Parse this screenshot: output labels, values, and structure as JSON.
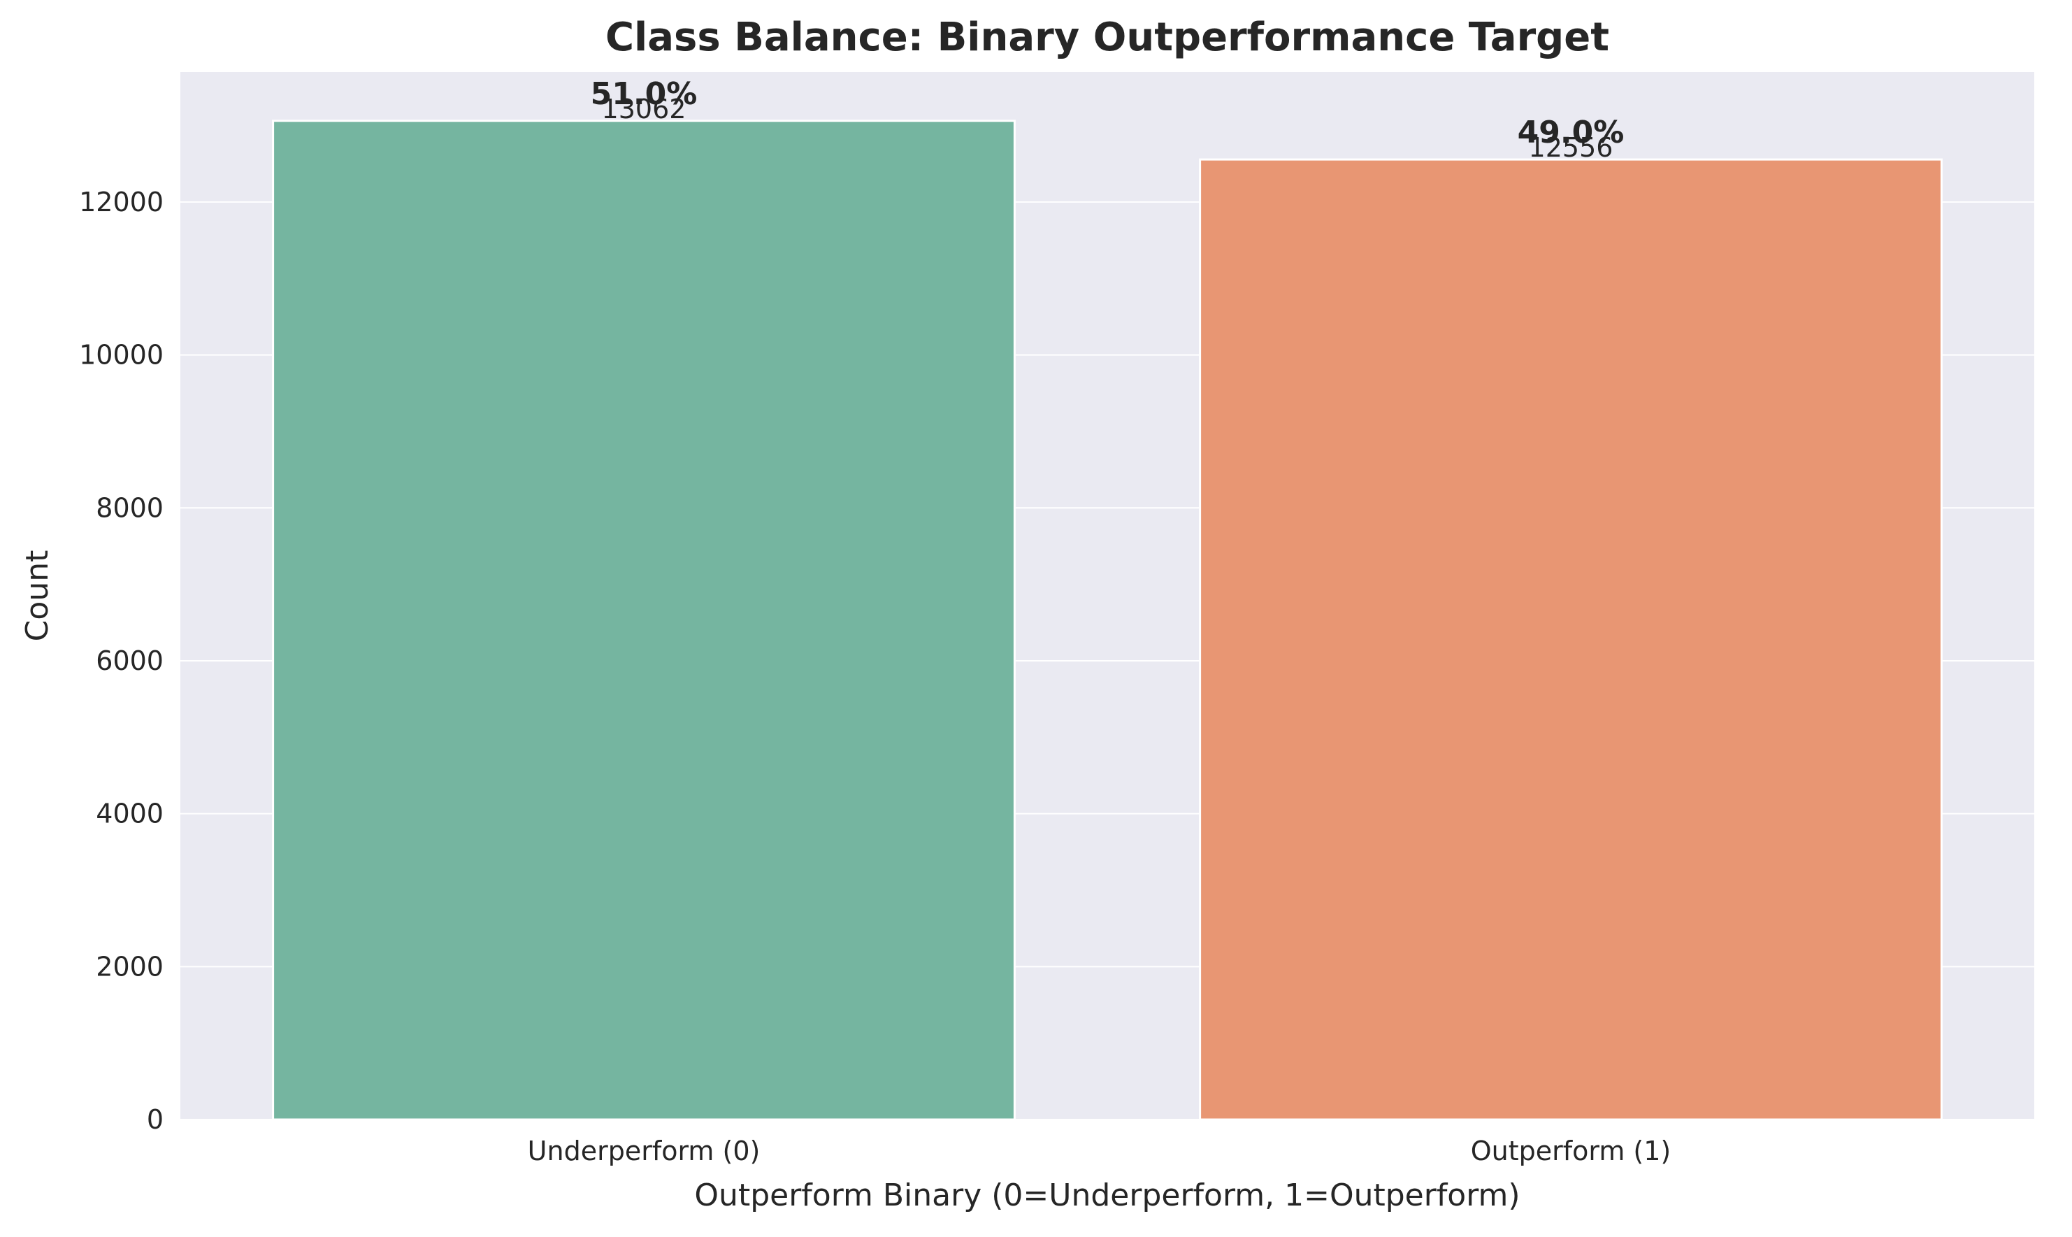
{
  "chart_data": {
    "type": "bar",
    "title": "Class Balance: Binary Outperformance Target",
    "xlabel": "Outperform Binary (0=Underperform, 1=Outperform)",
    "ylabel": "Count",
    "categories": [
      "Underperform (0)",
      "Outperform (1)"
    ],
    "values": [
      13062,
      12556
    ],
    "value_labels": [
      "13062",
      "12556"
    ],
    "percent_labels": [
      "51.0%",
      "49.0%"
    ],
    "ylim": [
      0,
      13700
    ],
    "yticks": [
      0,
      2000,
      4000,
      6000,
      8000,
      10000,
      12000
    ],
    "grid": true,
    "colors": [
      "#75b5a0",
      "#e89673"
    ],
    "background": "#eaeaf2"
  }
}
